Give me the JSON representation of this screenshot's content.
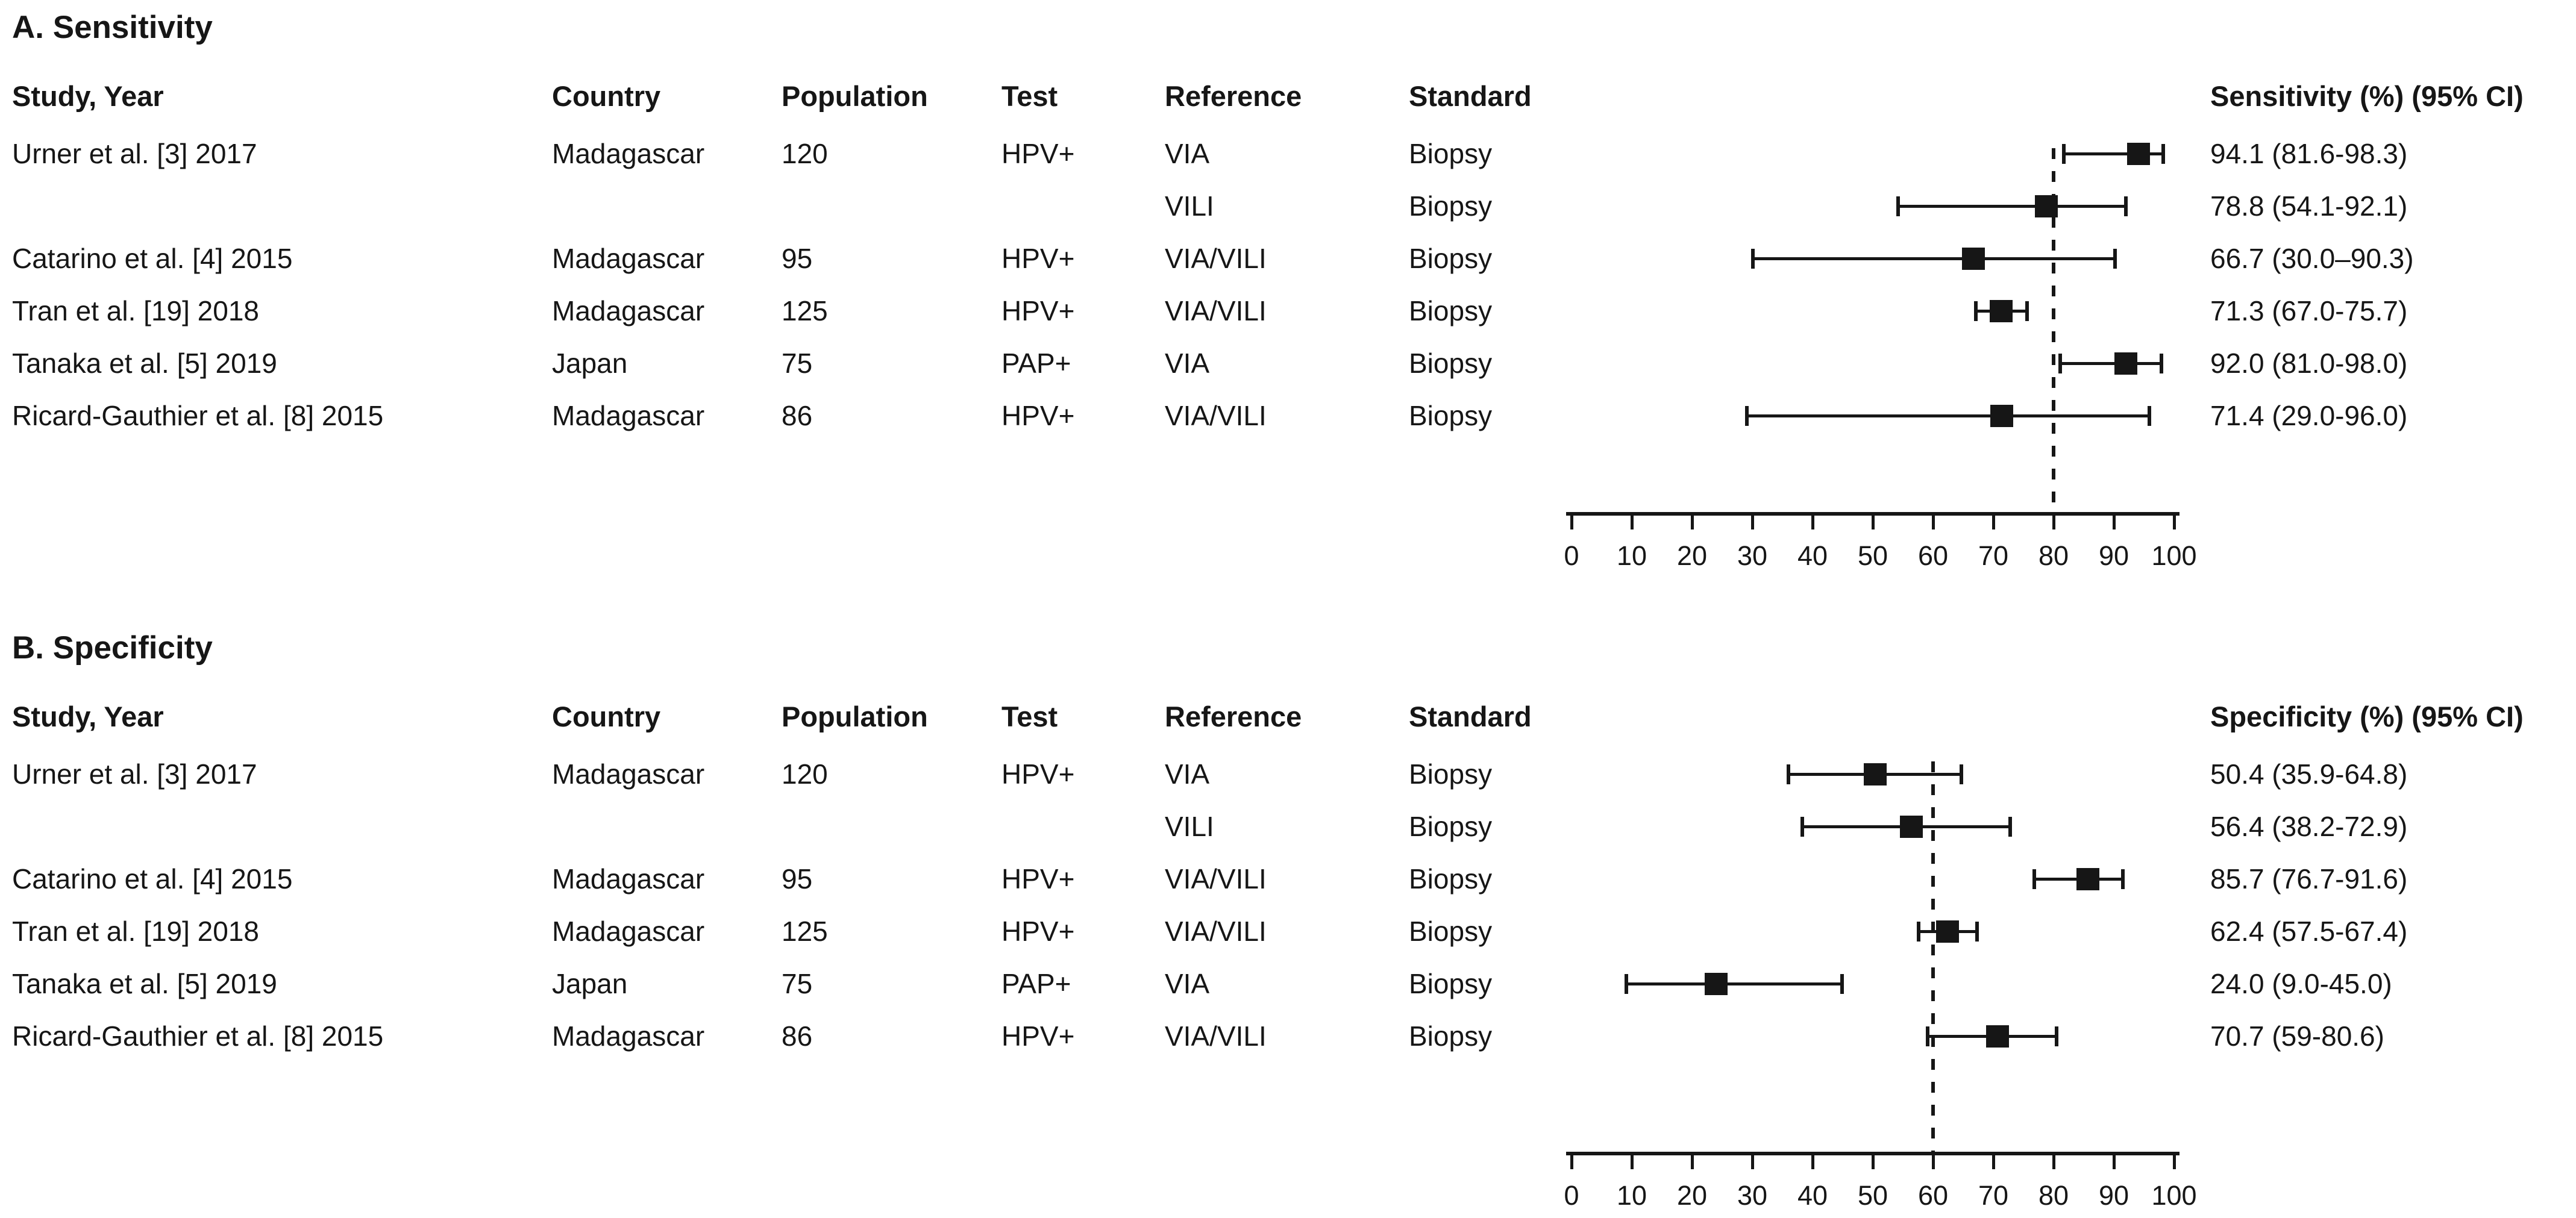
{
  "colors": {
    "ink": "#161616",
    "background": "#ffffff"
  },
  "chart_data": [
    {
      "type": "forest",
      "panel_label": "A. Sensitivity",
      "effect_header": "Sensitivity (%) (95% CI)",
      "columns": [
        "Study, Year",
        "Country",
        "Population",
        "Test",
        "Reference",
        "Standard"
      ],
      "x_axis": {
        "min": 0,
        "max": 100,
        "step": 10,
        "ticks": [
          0,
          10,
          20,
          30,
          40,
          50,
          60,
          70,
          80,
          90,
          100
        ]
      },
      "reference_line": 80,
      "rows": [
        {
          "study": "Urner et al. [3] 2017",
          "country": "Madagascar",
          "population": "120",
          "test": "HPV+",
          "reference": "VIA",
          "standard": "Biopsy",
          "estimate": 94.1,
          "ci_low": 81.6,
          "ci_high": 98.3,
          "estimate_label": "94.1 (81.6-98.3)"
        },
        {
          "study": "",
          "country": "",
          "population": "",
          "test": "",
          "reference": "VILI",
          "standard": "Biopsy",
          "estimate": 78.8,
          "ci_low": 54.1,
          "ci_high": 92.1,
          "estimate_label": "78.8 (54.1-92.1)"
        },
        {
          "study": "Catarino et al. [4] 2015",
          "country": "Madagascar",
          "population": "95",
          "test": "HPV+",
          "reference": "VIA/VILI",
          "standard": "Biopsy",
          "estimate": 66.7,
          "ci_low": 30.0,
          "ci_high": 90.3,
          "estimate_label": "66.7 (30.0–90.3)"
        },
        {
          "study": "Tran et al. [19] 2018",
          "country": "Madagascar",
          "population": "125",
          "test": "HPV+",
          "reference": "VIA/VILI",
          "standard": "Biopsy",
          "estimate": 71.3,
          "ci_low": 67.0,
          "ci_high": 75.7,
          "estimate_label": "71.3 (67.0-75.7)"
        },
        {
          "study": "Tanaka et al. [5] 2019",
          "country": "Japan",
          "population": "75",
          "test": "PAP+",
          "reference": "VIA",
          "standard": "Biopsy",
          "estimate": 92.0,
          "ci_low": 81.0,
          "ci_high": 98.0,
          "estimate_label": "92.0 (81.0-98.0)"
        },
        {
          "study": "Ricard-Gauthier et al. [8] 2015",
          "country": "Madagascar",
          "population": "86",
          "test": "HPV+",
          "reference": "VIA/VILI",
          "standard": "Biopsy",
          "estimate": 71.4,
          "ci_low": 29.0,
          "ci_high": 96.0,
          "estimate_label": "71.4 (29.0-96.0)"
        }
      ]
    },
    {
      "type": "forest",
      "panel_label": "B. Specificity",
      "effect_header": "Specificity (%) (95% CI)",
      "columns": [
        "Study, Year",
        "Country",
        "Population",
        "Test",
        "Reference",
        "Standard"
      ],
      "x_axis": {
        "min": 0,
        "max": 100,
        "step": 10,
        "ticks": [
          0,
          10,
          20,
          30,
          40,
          50,
          60,
          70,
          80,
          90,
          100
        ]
      },
      "reference_line": 60,
      "rows": [
        {
          "study": "Urner et al. [3] 2017",
          "country": "Madagascar",
          "population": "120",
          "test": "HPV+",
          "reference": "VIA",
          "standard": "Biopsy",
          "estimate": 50.4,
          "ci_low": 35.9,
          "ci_high": 64.8,
          "estimate_label": "50.4 (35.9-64.8)"
        },
        {
          "study": "",
          "country": "",
          "population": "",
          "test": "",
          "reference": "VILI",
          "standard": "Biopsy",
          "estimate": 56.4,
          "ci_low": 38.2,
          "ci_high": 72.9,
          "estimate_label": "56.4 (38.2-72.9)"
        },
        {
          "study": "Catarino et al. [4] 2015",
          "country": "Madagascar",
          "population": "95",
          "test": "HPV+",
          "reference": "VIA/VILI",
          "standard": "Biopsy",
          "estimate": 85.7,
          "ci_low": 76.7,
          "ci_high": 91.6,
          "estimate_label": "85.7 (76.7-91.6)"
        },
        {
          "study": "Tran et al. [19] 2018",
          "country": "Madagascar",
          "population": "125",
          "test": "HPV+",
          "reference": "VIA/VILI",
          "standard": "Biopsy",
          "estimate": 62.4,
          "ci_low": 57.5,
          "ci_high": 67.4,
          "estimate_label": "62.4 (57.5-67.4)"
        },
        {
          "study": "Tanaka et al. [5] 2019",
          "country": "Japan",
          "population": "75",
          "test": "PAP+",
          "reference": "VIA",
          "standard": "Biopsy",
          "estimate": 24.0,
          "ci_low": 9.0,
          "ci_high": 45.0,
          "estimate_label": "24.0 (9.0-45.0)"
        },
        {
          "study": "Ricard-Gauthier et al. [8] 2015",
          "country": "Madagascar",
          "population": "86",
          "test": "HPV+",
          "reference": "VIA/VILI",
          "standard": "Biopsy",
          "estimate": 70.7,
          "ci_low": 59.0,
          "ci_high": 80.6,
          "estimate_label": "70.7 (59-80.6)"
        }
      ]
    }
  ]
}
